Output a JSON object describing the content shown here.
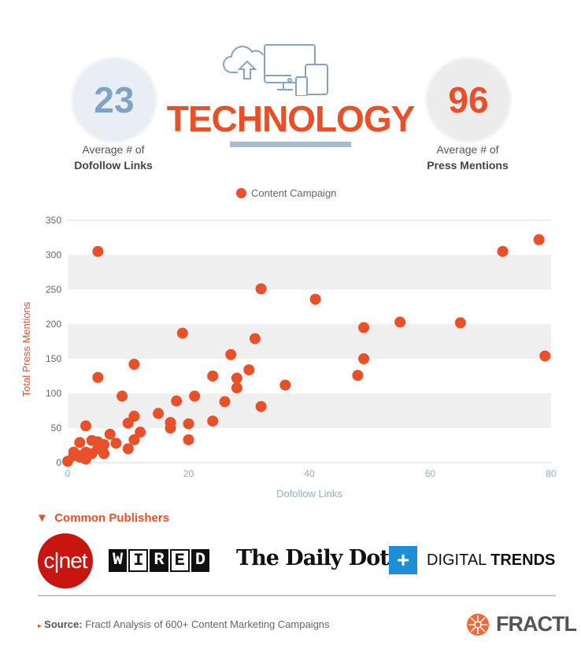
{
  "header": {
    "title": "TECHNOLOGY",
    "left_stat": {
      "value": "23",
      "label_line1": "Average # of",
      "label_line2": "Dofollow Links"
    },
    "right_stat": {
      "value": "96",
      "label_line1": "Average # of",
      "label_line2": "Press Mentions"
    },
    "icon": "devices-cloud-icon"
  },
  "colors": {
    "accent": "#e8502a",
    "blue": "#7ea3c4",
    "band": "#efefef"
  },
  "chart_data": {
    "type": "scatter",
    "title": "",
    "xlabel": "Dofollow Links",
    "ylabel": "Total Press Mentions",
    "xlim": [
      0,
      80
    ],
    "ylim": [
      0,
      350
    ],
    "xticks": [
      "0",
      "20",
      "40",
      "60",
      "80"
    ],
    "yticks": [
      "0",
      "50",
      "100",
      "150",
      "200",
      "250",
      "300",
      "350"
    ],
    "legend": {
      "label": "Content Campaign",
      "placement": "top-center"
    },
    "series": [
      {
        "name": "Content Campaign",
        "points": [
          [
            5,
            305
          ],
          [
            72,
            305
          ],
          [
            78,
            322
          ],
          [
            32,
            251
          ],
          [
            41,
            236
          ],
          [
            19,
            187
          ],
          [
            49,
            195
          ],
          [
            55,
            203
          ],
          [
            65,
            202
          ],
          [
            31,
            179
          ],
          [
            27,
            156
          ],
          [
            49,
            150
          ],
          [
            79,
            154
          ],
          [
            11,
            142
          ],
          [
            30,
            134
          ],
          [
            24,
            125
          ],
          [
            28,
            122
          ],
          [
            48,
            126
          ],
          [
            5,
            123
          ],
          [
            28,
            108
          ],
          [
            36,
            112
          ],
          [
            9,
            96
          ],
          [
            21,
            96
          ],
          [
            18,
            89
          ],
          [
            26,
            88
          ],
          [
            32,
            81
          ],
          [
            15,
            71
          ],
          [
            11,
            67
          ],
          [
            17,
            58
          ],
          [
            10,
            57
          ],
          [
            20,
            56
          ],
          [
            24,
            60
          ],
          [
            17,
            50
          ],
          [
            3,
            53
          ],
          [
            12,
            44
          ],
          [
            7,
            41
          ],
          [
            8,
            28
          ],
          [
            11,
            33
          ],
          [
            20,
            33
          ],
          [
            10,
            20
          ],
          [
            2,
            29
          ],
          [
            4,
            32
          ],
          [
            5,
            30
          ],
          [
            6,
            26
          ],
          [
            3,
            15
          ],
          [
            1,
            15
          ],
          [
            2,
            10
          ],
          [
            3,
            5
          ],
          [
            0,
            2
          ],
          [
            4,
            13
          ],
          [
            6,
            13
          ],
          [
            5,
            20
          ],
          [
            2,
            8
          ],
          [
            1,
            10
          ]
        ]
      }
    ]
  },
  "publishers": {
    "title": "Common Publishers",
    "logos": [
      "cnet",
      "WIRED",
      "The Daily Dot",
      "DIGITAL TRENDS"
    ]
  },
  "footer": {
    "source_label": "Source:",
    "source_text": "Fractl Analysis of 600+ Content Marketing Campaigns",
    "brand": "FRACTL"
  }
}
